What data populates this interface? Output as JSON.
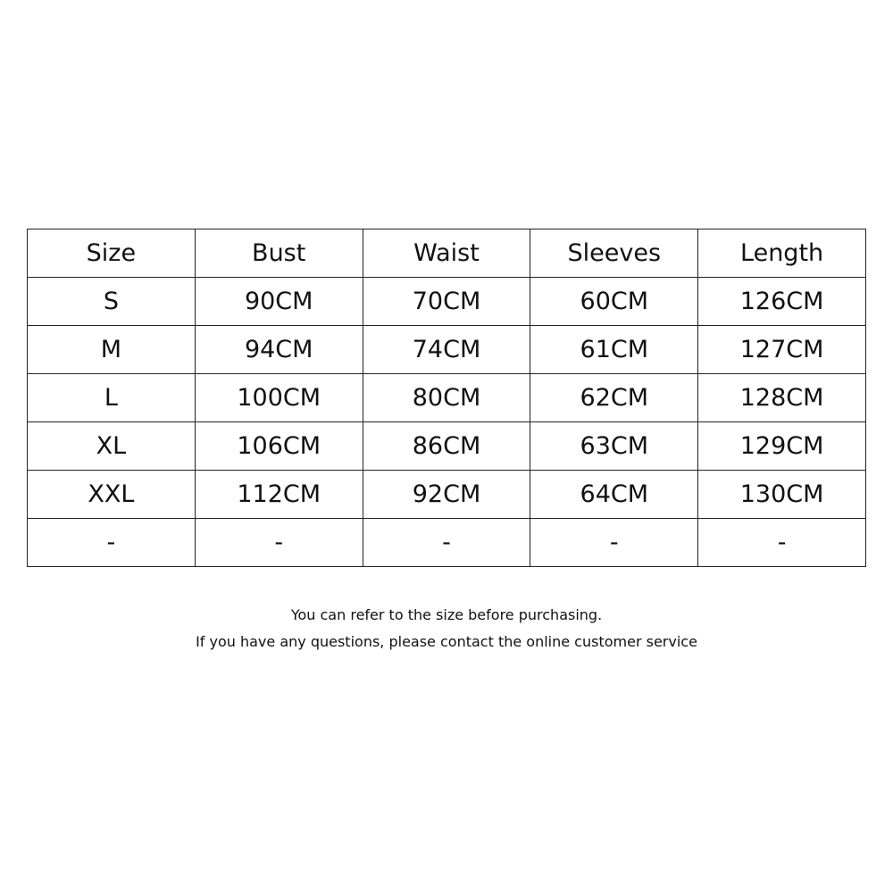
{
  "table": {
    "header": [
      "Size",
      "Bust",
      "Waist",
      "Sleeves",
      "Length"
    ],
    "rows": [
      [
        "S",
        "90CM",
        "70CM",
        "60CM",
        "126CM"
      ],
      [
        "M",
        "94CM",
        "74CM",
        "61CM",
        "127CM"
      ],
      [
        "L",
        "100CM",
        "80CM",
        "62CM",
        "128CM"
      ],
      [
        "XL",
        "106CM",
        "86CM",
        "63CM",
        "129CM"
      ],
      [
        "XXL",
        "112CM",
        "92CM",
        "64CM",
        "130CM"
      ],
      [
        "-",
        "-",
        "-",
        "-",
        "-"
      ]
    ]
  },
  "notes": [
    "You can refer to the size before purchasing.",
    "If you have any questions, please contact the online customer service"
  ]
}
